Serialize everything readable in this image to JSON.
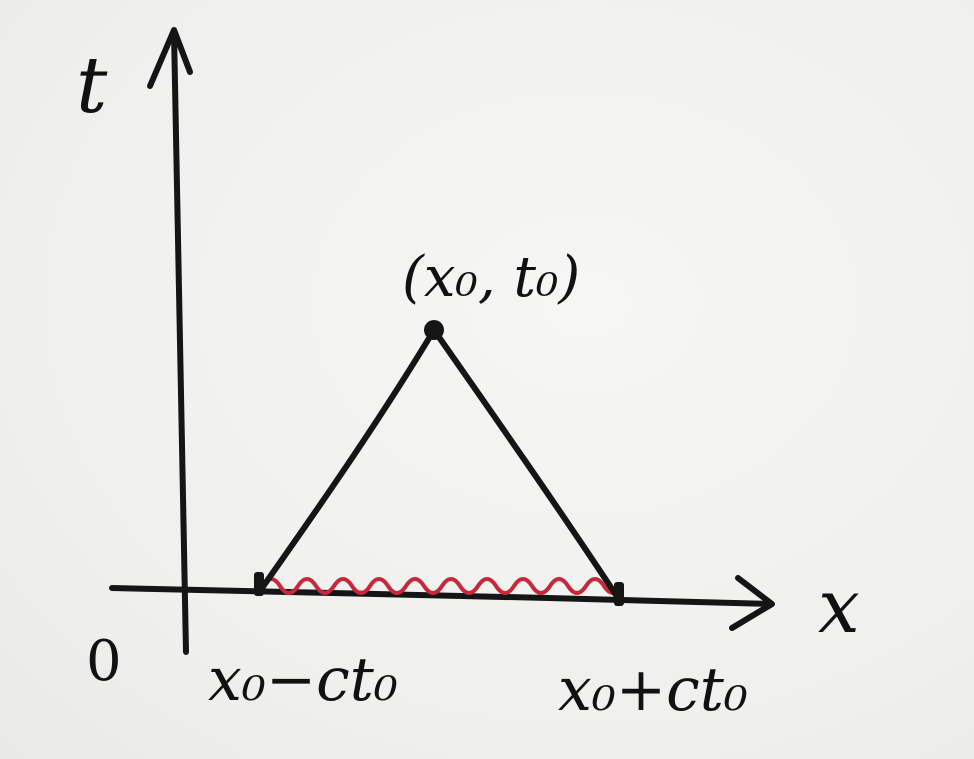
{
  "labels": {
    "t_axis": "t",
    "x_axis": "x",
    "origin": "0",
    "apex": "(x₀, t₀)",
    "left_end": "x₀−ct₀",
    "right_end": "x₀+ct₀"
  },
  "colors": {
    "ink": "#151515",
    "interval_wave": "#c8283c",
    "paper": "#f1f1ef"
  }
}
